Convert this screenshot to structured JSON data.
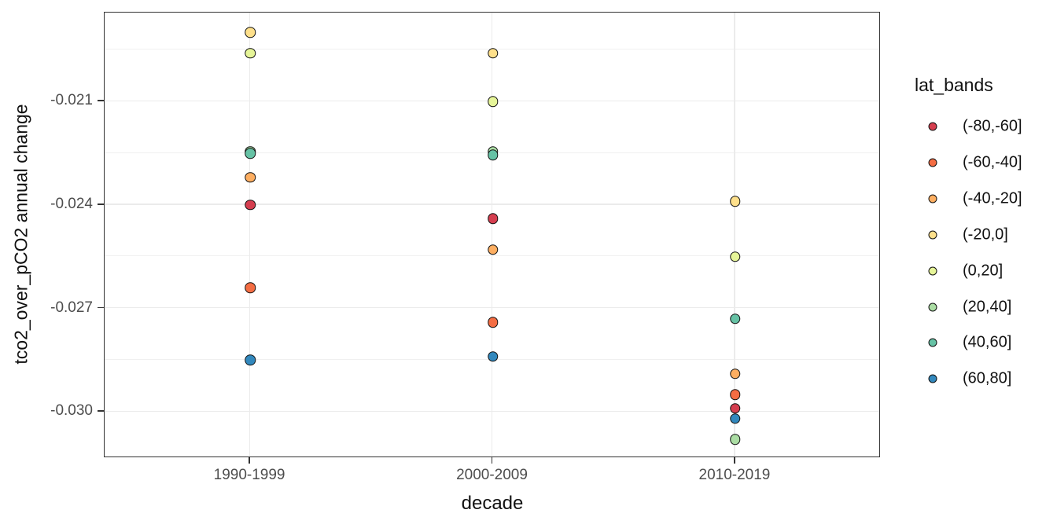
{
  "chart_data": {
    "type": "scatter",
    "title": "",
    "xlabel": "decade",
    "ylabel": "tco2_over_pCO2 annual change",
    "categories": [
      "1990-1999",
      "2000-2009",
      "2010-2019"
    ],
    "y_tick_labels": [
      "-0.021",
      "-0.024",
      "-0.027",
      "-0.030"
    ],
    "y_ticks": [
      -0.021,
      -0.024,
      -0.027,
      -0.03
    ],
    "y_minor_ticks": [
      -0.0195,
      -0.0225,
      -0.0255,
      -0.0285
    ],
    "ylim": [
      -0.03134,
      -0.01842
    ],
    "grid": true,
    "legend_position": "right",
    "legend_title": "lat_bands",
    "series": [
      {
        "name": "(-80,-60]",
        "color": "#d53e4f",
        "values": [
          -0.024,
          -0.0244,
          -0.0299
        ]
      },
      {
        "name": "(-60,-40]",
        "color": "#f46d43",
        "values": [
          -0.0264,
          -0.0274,
          -0.0295
        ]
      },
      {
        "name": "(-40,-20]",
        "color": "#fdae61",
        "values": [
          -0.0232,
          -0.0253,
          -0.0289
        ]
      },
      {
        "name": "(-20,0]",
        "color": "#fee08b",
        "values": [
          -0.019,
          -0.0196,
          -0.0239
        ]
      },
      {
        "name": "(0,20]",
        "color": "#e6f598",
        "values": [
          -0.0196,
          -0.021,
          -0.0255
        ]
      },
      {
        "name": "(20,40]",
        "color": "#abdda4",
        "values": [
          -0.02245,
          -0.02245,
          -0.0308
        ]
      },
      {
        "name": "(40,60]",
        "color": "#66c2a5",
        "values": [
          -0.0225,
          -0.02255,
          -0.0273
        ]
      },
      {
        "name": "(60,80]",
        "color": "#3288bd",
        "values": [
          -0.0285,
          -0.0284,
          -0.0302
        ]
      }
    ]
  }
}
